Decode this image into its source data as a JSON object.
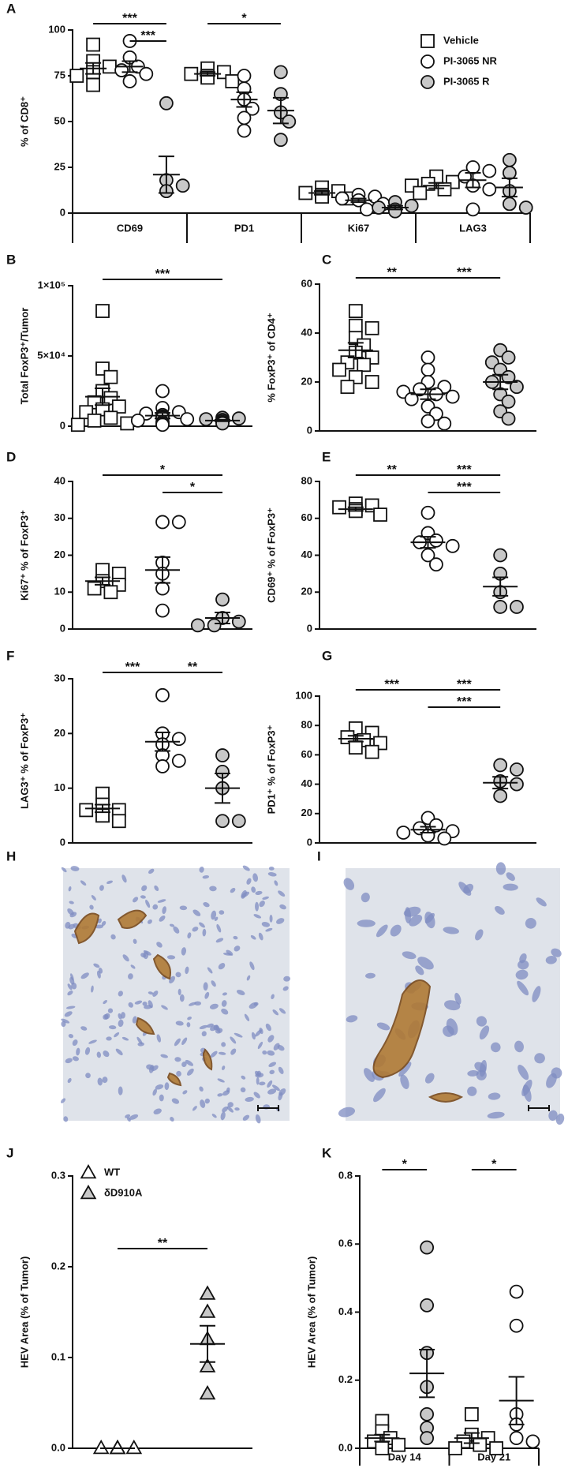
{
  "chart_data": [
    {
      "type": "scatter",
      "panel": "A",
      "ylabel": "% of CD8⁺",
      "ylim": [
        0,
        100
      ],
      "yticks": [
        0,
        25,
        50,
        75,
        100
      ],
      "categories": [
        "CD69",
        "PD1",
        "Ki67",
        "LAG3"
      ],
      "legend": "upper right",
      "series": [
        {
          "name": "Vehicle",
          "marker": "square",
          "color": "#ffffff",
          "values": [
            [
              92,
              83,
              80,
              77,
              75,
              70
            ],
            [
              79,
              77,
              76,
              75,
              74,
              72
            ],
            [
              14,
              12,
              11,
              10,
              9,
              8
            ],
            [
              20,
              17,
              16,
              15,
              13,
              11
            ]
          ],
          "mean": [
            79,
            76,
            11,
            15
          ],
          "sem": [
            3,
            1,
            1,
            1.5
          ]
        },
        {
          "name": "PI-3065 NR",
          "marker": "circle",
          "color": "#ffffff",
          "values": [
            [
              94,
              85,
              80,
              78,
              76,
              72
            ],
            [
              75,
              68,
              62,
              57,
              52,
              45
            ],
            [
              10,
              9,
              8,
              7,
              5,
              2
            ],
            [
              25,
              23,
              20,
              15,
              13,
              2
            ]
          ],
          "mean": [
            80,
            62,
            7,
            18
          ],
          "sem": [
            3,
            4,
            1,
            4
          ]
        },
        {
          "name": "PI-3065 R",
          "marker": "circle",
          "color": "#c8c8c8",
          "values": [
            [
              60,
              18,
              15,
              12
            ],
            [
              77,
              65,
              55,
              50,
              40
            ],
            [
              6,
              4,
              3,
              2,
              1
            ],
            [
              29,
              22,
              12,
              5,
              3
            ]
          ],
          "mean": [
            21,
            56,
            3,
            14
          ],
          "sem": [
            10,
            7,
            1,
            5
          ]
        }
      ],
      "significance": [
        {
          "category": 0,
          "from": 0,
          "to": 2,
          "text": "***"
        },
        {
          "category": 0,
          "from": 1,
          "to": 2,
          "text": "***"
        },
        {
          "category": 1,
          "from": 0,
          "to": 2,
          "text": "*"
        }
      ]
    },
    {
      "type": "scatter",
      "panel": "B",
      "ylabel": "Total FoxP3⁺/Tumor",
      "ylim": [
        0,
        100000
      ],
      "yticks": [
        0,
        {
          "value": 50000,
          "label": "5×10⁴"
        },
        {
          "value": 100000,
          "label": "1×10⁵"
        }
      ],
      "series": [
        {
          "marker": "square",
          "color": "#ffffff",
          "values": [
            82000,
            41000,
            35000,
            25000,
            20000,
            17000,
            14000,
            12000,
            10000,
            6000,
            4000,
            2000,
            1000
          ],
          "mean": 21000,
          "sem": 6000
        },
        {
          "marker": "circle",
          "color": "#ffffff",
          "values": [
            25000,
            13000,
            10000,
            9000,
            8000,
            7000,
            6000,
            5000,
            4000,
            3000,
            2000,
            1000
          ],
          "mean": 7500,
          "sem": 2000
        },
        {
          "marker": "circle",
          "color": "#c8c8c8",
          "values": [
            6000,
            5500,
            5000,
            4500,
            4000,
            3000,
            2500,
            2000
          ],
          "mean": 4000,
          "sem": 500
        }
      ],
      "significance": [
        {
          "from": 0,
          "to": 2,
          "text": "***"
        }
      ]
    },
    {
      "type": "scatter",
      "panel": "C",
      "ylabel": "% FoxP3⁺ of CD4⁺",
      "ylim": [
        0,
        60
      ],
      "yticks": [
        0,
        20,
        40,
        60
      ],
      "series": [
        {
          "marker": "square",
          "color": "#ffffff",
          "values": [
            49,
            43,
            42,
            38,
            35,
            32,
            30,
            28,
            27,
            25,
            22,
            20,
            18
          ],
          "mean": 33,
          "sem": 3
        },
        {
          "marker": "circle",
          "color": "#ffffff",
          "values": [
            30,
            25,
            20,
            18,
            17,
            16,
            15,
            14,
            13,
            10,
            7,
            4,
            3
          ],
          "mean": 15,
          "sem": 2
        },
        {
          "marker": "circle",
          "color": "#c8c8c8",
          "values": [
            33,
            30,
            28,
            25,
            22,
            20,
            18,
            15,
            12,
            8,
            5
          ],
          "mean": 20,
          "sem": 3
        }
      ],
      "significance": [
        {
          "from": 0,
          "to": 1,
          "text": "**"
        },
        {
          "from": 1,
          "to": 2,
          "text": "***"
        }
      ]
    },
    {
      "type": "scatter",
      "panel": "D",
      "ylabel": "Ki67⁺ % of FoxP3⁺",
      "ylim": [
        0,
        40
      ],
      "yticks": [
        0,
        10,
        20,
        30,
        40
      ],
      "series": [
        {
          "marker": "square",
          "color": "#ffffff",
          "values": [
            16,
            15,
            13,
            12,
            11,
            10
          ],
          "mean": 13,
          "sem": 1
        },
        {
          "marker": "circle",
          "color": "#ffffff",
          "values": [
            29,
            29,
            18,
            15,
            11,
            5
          ],
          "mean": 16,
          "sem": 3.5
        },
        {
          "marker": "circle",
          "color": "#c8c8c8",
          "values": [
            8,
            3,
            2,
            1,
            1
          ],
          "mean": 3,
          "sem": 1.5
        }
      ],
      "significance": [
        {
          "from": 0,
          "to": 2,
          "text": "*"
        },
        {
          "from": 1,
          "to": 2,
          "text": "*"
        }
      ]
    },
    {
      "type": "scatter",
      "panel": "E",
      "ylabel": "CD69⁺ % of FoxP3⁺",
      "ylim": [
        0,
        80
      ],
      "yticks": [
        0,
        20,
        40,
        60,
        80
      ],
      "series": [
        {
          "marker": "square",
          "color": "#ffffff",
          "values": [
            68,
            67,
            66,
            65,
            64,
            62
          ],
          "mean": 65,
          "sem": 1
        },
        {
          "marker": "circle",
          "color": "#ffffff",
          "values": [
            63,
            52,
            48,
            47,
            45,
            40,
            35
          ],
          "mean": 47,
          "sem": 3
        },
        {
          "marker": "circle",
          "color": "#c8c8c8",
          "values": [
            40,
            30,
            20,
            12,
            12
          ],
          "mean": 23,
          "sem": 5
        }
      ],
      "significance": [
        {
          "from": 0,
          "to": 1,
          "text": "**"
        },
        {
          "from": 1,
          "to": 2,
          "text": "***"
        },
        {
          "from": 1,
          "to": 2,
          "text": "***"
        }
      ]
    },
    {
      "type": "scatter",
      "panel": "F",
      "ylabel": "LAG3⁺ % of FoxP3⁺",
      "ylim": [
        0,
        30
      ],
      "yticks": [
        0,
        10,
        20,
        30
      ],
      "series": [
        {
          "marker": "square",
          "color": "#ffffff",
          "values": [
            9,
            7,
            6,
            6,
            5,
            5,
            4
          ],
          "mean": 6.3,
          "sem": 0.7
        },
        {
          "marker": "circle",
          "color": "#ffffff",
          "values": [
            27,
            20,
            19,
            18,
            16,
            15,
            14
          ],
          "mean": 18.5,
          "sem": 1.7
        },
        {
          "marker": "circle",
          "color": "#c8c8c8",
          "values": [
            16,
            13,
            10,
            4,
            4
          ],
          "mean": 10,
          "sem": 2.7
        }
      ],
      "significance": [
        {
          "from": 0,
          "to": 1,
          "text": "***"
        },
        {
          "from": 1,
          "to": 2,
          "text": "**"
        }
      ]
    },
    {
      "type": "scatter",
      "panel": "G",
      "ylabel": "PD1⁺ % of FoxP3⁺",
      "ylim": [
        0,
        100
      ],
      "yticks": [
        0,
        20,
        40,
        60,
        80,
        100
      ],
      "series": [
        {
          "marker": "square",
          "color": "#ffffff",
          "values": [
            78,
            75,
            72,
            70,
            68,
            65,
            62
          ],
          "mean": 71,
          "sem": 2
        },
        {
          "marker": "circle",
          "color": "#ffffff",
          "values": [
            17,
            12,
            10,
            8,
            7,
            5,
            3
          ],
          "mean": 9,
          "sem": 2
        },
        {
          "marker": "circle",
          "color": "#c8c8c8",
          "values": [
            53,
            50,
            42,
            40,
            32
          ],
          "mean": 41,
          "sem": 4
        }
      ],
      "significance": [
        {
          "from": 0,
          "to": 1,
          "text": "***"
        },
        {
          "from": 1,
          "to": 2,
          "text": "***"
        },
        {
          "from": 1,
          "to": 2,
          "text": "***"
        }
      ]
    },
    {
      "type": "scatter",
      "panel": "J",
      "ylabel": "HEV Area (% of Tumor)",
      "ylim": [
        0,
        0.3
      ],
      "yticks": [
        {
          "value": 0,
          "label": "0.0"
        },
        0.1,
        0.2,
        0.3
      ],
      "legend": "upper left",
      "series": [
        {
          "name": "WT",
          "marker": "triangle",
          "color": "#ffffff",
          "values": [
            0,
            0,
            0,
            0,
            0
          ],
          "mean": 0,
          "sem": 0
        },
        {
          "name": "δD910A",
          "marker": "triangle",
          "color": "#c8c8c8",
          "values": [
            0.17,
            0.15,
            0.12,
            0.09,
            0.06
          ],
          "mean": 0.115,
          "sem": 0.02
        }
      ],
      "significance": [
        {
          "from": 0,
          "to": 1,
          "text": "**"
        }
      ]
    },
    {
      "type": "scatter",
      "panel": "K",
      "ylabel": "HEV Area (% of Tumor)",
      "ylim": [
        0,
        0.8
      ],
      "yticks": [
        {
          "value": 0,
          "label": "0.0"
        },
        0.2,
        0.4,
        0.6,
        0.8
      ],
      "categories": [
        "Day 14",
        "Day 21"
      ],
      "series": [
        {
          "marker": "square",
          "color": "#ffffff",
          "values": [
            [
              0.08,
              0.05,
              0.03,
              0.02,
              0.01,
              0.0
            ],
            [
              0.1,
              0.04,
              0.03,
              0.02,
              0.01,
              0,
              0
            ]
          ],
          "mean": [
            0.03,
            0.03
          ],
          "sem": [
            0.01,
            0.015
          ]
        },
        {
          "marker": "circle",
          "color": [
            "#c8c8c8",
            "#ffffff"
          ],
          "values": [
            [
              0.59,
              0.42,
              0.28,
              0.18,
              0.1,
              0.06,
              0.03
            ],
            [
              0.46,
              0.36,
              0.1,
              0.07,
              0.03,
              0.02
            ]
          ],
          "mean": [
            0.22,
            0.14
          ],
          "sem": [
            0.07,
            0.07
          ]
        }
      ],
      "significance": [
        {
          "category": 0,
          "from": 0,
          "to": 1,
          "text": "*"
        },
        {
          "category": 1,
          "from": 0,
          "to": 1,
          "text": "*"
        }
      ]
    }
  ],
  "images": [
    {
      "label": "H"
    },
    {
      "label": "I"
    }
  ]
}
